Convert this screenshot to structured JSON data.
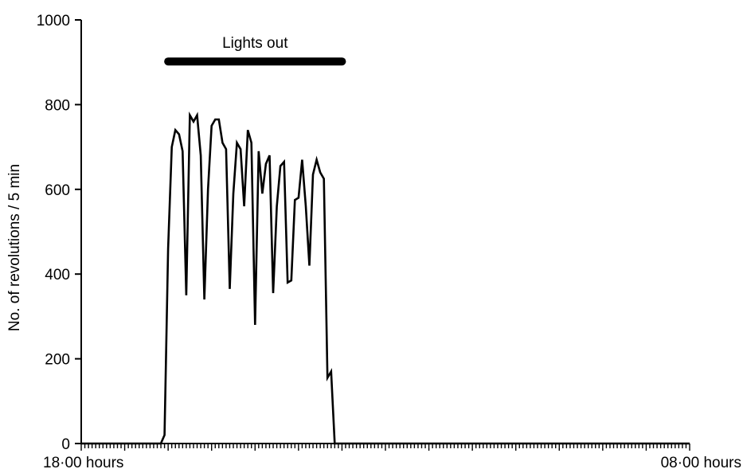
{
  "chart_data": {
    "type": "line",
    "ylabel": "No. of revolutions / 5 min",
    "xlabel": "",
    "ylim": [
      0,
      1000
    ],
    "yticks": [
      0,
      200,
      400,
      600,
      800,
      1000
    ],
    "x_start_label": "18·00 hours",
    "x_end_label": "08·00 hours",
    "x_range_intervals": [
      0,
      168
    ],
    "grid": false,
    "annotation": {
      "text": "Lights out",
      "bar_value": 900,
      "bar_x_from": 24,
      "bar_x_to": 72
    },
    "series": [
      {
        "values": [
          [
            0,
            0
          ],
          [
            22,
            0
          ],
          [
            23,
            20
          ],
          [
            24,
            460
          ],
          [
            25,
            700
          ],
          [
            26,
            740
          ],
          [
            27,
            730
          ],
          [
            28,
            690
          ],
          [
            29,
            350
          ],
          [
            30,
            775
          ],
          [
            31,
            760
          ],
          [
            32,
            775
          ],
          [
            33,
            680
          ],
          [
            34,
            340
          ],
          [
            35,
            600
          ],
          [
            36,
            750
          ],
          [
            37,
            765
          ],
          [
            38,
            765
          ],
          [
            39,
            710
          ],
          [
            40,
            695
          ],
          [
            41,
            365
          ],
          [
            42,
            590
          ],
          [
            43,
            710
          ],
          [
            44,
            695
          ],
          [
            45,
            560
          ],
          [
            46,
            740
          ],
          [
            47,
            710
          ],
          [
            48,
            280
          ],
          [
            49,
            690
          ],
          [
            50,
            590
          ],
          [
            51,
            660
          ],
          [
            52,
            680
          ],
          [
            53,
            355
          ],
          [
            54,
            560
          ],
          [
            55,
            655
          ],
          [
            56,
            665
          ],
          [
            57,
            380
          ],
          [
            58,
            385
          ],
          [
            59,
            575
          ],
          [
            60,
            580
          ],
          [
            61,
            670
          ],
          [
            62,
            560
          ],
          [
            63,
            420
          ],
          [
            64,
            635
          ],
          [
            65,
            670
          ],
          [
            66,
            640
          ],
          [
            67,
            625
          ],
          [
            68,
            155
          ],
          [
            69,
            170
          ],
          [
            70,
            0
          ],
          [
            168,
            0
          ]
        ]
      }
    ]
  }
}
